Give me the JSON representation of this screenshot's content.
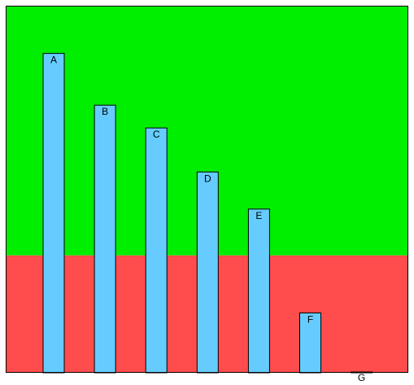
{
  "chart_data": {
    "type": "bar",
    "categories": [
      "A",
      "B",
      "C",
      "D",
      "E",
      "F",
      "G"
    ],
    "values": [
      87,
      72.9,
      66.7,
      54.7,
      44.6,
      16.3,
      0.2
    ],
    "ylim": [
      0,
      100
    ],
    "grid": false,
    "legend": "none",
    "threshold_value": 32,
    "colors": {
      "above_threshold": "#00ee00",
      "below_threshold": "#ff4c4c",
      "bar": "#66ccff",
      "bar_border": "#000000",
      "frame_border": "#000000"
    }
  }
}
